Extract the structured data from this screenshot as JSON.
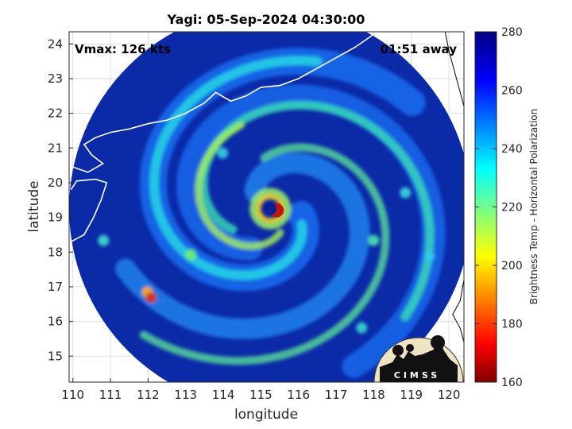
{
  "chart_data": {
    "type": "heatmap",
    "title": "Yagi: 05-Sep-2024 04:30:00",
    "xlabel": "longitude",
    "ylabel": "latitude",
    "xlim": [
      109.9,
      120.4
    ],
    "ylim": [
      14.25,
      24.35
    ],
    "xticks": [
      "110",
      "111",
      "112",
      "113",
      "114",
      "115",
      "116",
      "117",
      "118",
      "119",
      "120"
    ],
    "yticks": [
      "15",
      "16",
      "17",
      "18",
      "19",
      "20",
      "21",
      "22",
      "23",
      "24"
    ],
    "grid": true,
    "annotations": {
      "vmax": "Vmax: 126 kts",
      "time_offset": "01:51 away"
    },
    "storm_center": {
      "lon": 115.25,
      "lat": 19.25
    },
    "swath_radius_deg": 5.35,
    "colorbar": {
      "label": "Brightness Temp - Horizontal Polarization",
      "range": [
        160,
        280
      ],
      "ticks": [
        "160",
        "180",
        "200",
        "220",
        "240",
        "260",
        "280"
      ],
      "colormap": "jet"
    },
    "colors": {
      "background_field": "#0b2aa8",
      "eye": "#0c1f96",
      "eyewall_max": "#b00000",
      "coastline": "#ffffff"
    },
    "logo_text": "CIMSS"
  }
}
